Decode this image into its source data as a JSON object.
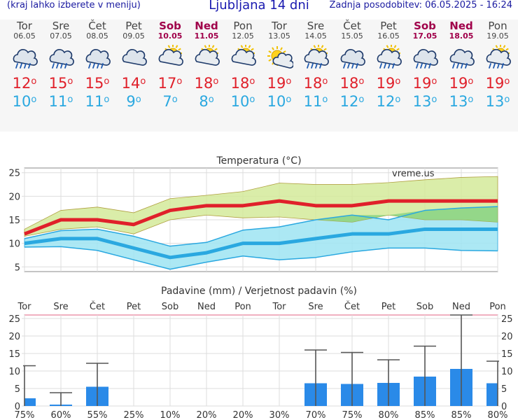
{
  "header": {
    "menu_hint": "(kraj lahko izberete v meniju)",
    "title": "Ljubljana 14 dni",
    "updated": "Zadnja posodobitev: 06.05.2025 - 16:24"
  },
  "colors": {
    "max_temp": "#e0202a",
    "min_temp": "#2aa8e0",
    "weekend": "#a0004a",
    "max_band": "#d4ea9a",
    "min_band": "#9de4f2",
    "precip_bar": "#2a8ae8"
  },
  "days": [
    {
      "name": "Tor",
      "date": "06.05",
      "weekend": false,
      "icon": "rain-cloud-icon",
      "max": "12",
      "min": "10"
    },
    {
      "name": "Sre",
      "date": "07.05",
      "weekend": false,
      "icon": "rain-cloud-icon",
      "max": "15",
      "min": "11"
    },
    {
      "name": "Čet",
      "date": "08.05",
      "weekend": false,
      "icon": "rain-cloud-icon",
      "max": "15",
      "min": "11"
    },
    {
      "name": "Pet",
      "date": "09.05",
      "weekend": false,
      "icon": "cloud-icon",
      "max": "14",
      "min": "9"
    },
    {
      "name": "Sob",
      "date": "10.05",
      "weekend": true,
      "icon": "partly-sunny-icon",
      "max": "17",
      "min": "7"
    },
    {
      "name": "Ned",
      "date": "11.05",
      "weekend": true,
      "icon": "partly-sunny-icon",
      "max": "18",
      "min": "8"
    },
    {
      "name": "Pon",
      "date": "12.05",
      "weekend": false,
      "icon": "partly-sunny-icon",
      "max": "18",
      "min": "10"
    },
    {
      "name": "Tor",
      "date": "13.05",
      "weekend": false,
      "icon": "sun-cloud-icon",
      "max": "19",
      "min": "10"
    },
    {
      "name": "Sre",
      "date": "14.05",
      "weekend": false,
      "icon": "sun-rain-icon",
      "max": "18",
      "min": "11"
    },
    {
      "name": "Čet",
      "date": "15.05",
      "weekend": false,
      "icon": "rain-cloud-icon",
      "max": "18",
      "min": "12"
    },
    {
      "name": "Pet",
      "date": "16.05",
      "weekend": false,
      "icon": "sun-rain-icon",
      "max": "19",
      "min": "12"
    },
    {
      "name": "Sob",
      "date": "17.05",
      "weekend": true,
      "icon": "rain-cloud-icon",
      "max": "19",
      "min": "13"
    },
    {
      "name": "Ned",
      "date": "18.05",
      "weekend": true,
      "icon": "rain-cloud-icon",
      "max": "19",
      "min": "13"
    },
    {
      "name": "Pon",
      "date": "19.05",
      "weekend": false,
      "icon": "sun-rain-icon",
      "max": "19",
      "min": "13"
    }
  ],
  "chart_data": [
    {
      "type": "line",
      "title": "Temperatura (°C)",
      "watermark": "vreme.us",
      "ylim": [
        4,
        26
      ],
      "yticks": [
        5,
        10,
        15,
        20,
        25
      ],
      "grid": true,
      "series": [
        {
          "values": [
            12,
            15,
            15,
            14,
            17,
            18,
            18,
            19,
            18,
            18,
            19,
            19,
            19,
            19
          ]
        },
        {
          "values": [
            10,
            11,
            11,
            9,
            7,
            8,
            10,
            10,
            11,
            12,
            12,
            13,
            13,
            13
          ]
        }
      ],
      "max_band_upper": [
        13,
        17,
        17.7,
        16.5,
        19.5,
        20.2,
        21,
        22.8,
        22.5,
        22.5,
        22.9,
        23.5,
        24,
        24.2
      ],
      "max_band_lower": [
        11.5,
        13,
        13.5,
        12,
        15,
        16,
        15.4,
        15.6,
        15,
        14.5,
        16,
        15,
        15,
        14.5
      ],
      "min_band_upper": [
        11,
        12.7,
        13,
        11.5,
        9.4,
        10.2,
        12.8,
        13.5,
        15,
        16,
        15,
        17,
        17.5,
        17.8
      ],
      "min_band_lower": [
        9.2,
        9.3,
        8.5,
        6.5,
        4.5,
        6,
        7.3,
        6.5,
        7,
        8.2,
        9,
        9,
        8.5,
        8.4
      ]
    },
    {
      "type": "bar",
      "title": "Padavine (mm) / Verjetnost padavin (%)",
      "ylim": [
        0,
        26
      ],
      "yticks": [
        0,
        5,
        10,
        15,
        20,
        25
      ],
      "categories": [
        "Tor",
        "Sre",
        "Čet",
        "Pet",
        "Sob",
        "Ned",
        "Pon",
        "Tor",
        "Sre",
        "Čet",
        "Pet",
        "Sob",
        "Ned",
        "Pon"
      ],
      "values": [
        2.2,
        0.4,
        5.5,
        0,
        0,
        0,
        0,
        0,
        6.5,
        6.3,
        6.6,
        8.4,
        10.6,
        6.5
      ],
      "range_upper": [
        11.5,
        3.8,
        12.2,
        0,
        0,
        0,
        0,
        0,
        16,
        15.3,
        13.2,
        17.1,
        26,
        12.8
      ],
      "probabilities": [
        "75%",
        "60%",
        "55%",
        "25%",
        "10%",
        "20%",
        "20%",
        "30%",
        "70%",
        "75%",
        "80%",
        "85%",
        "85%",
        "80%"
      ]
    }
  ]
}
